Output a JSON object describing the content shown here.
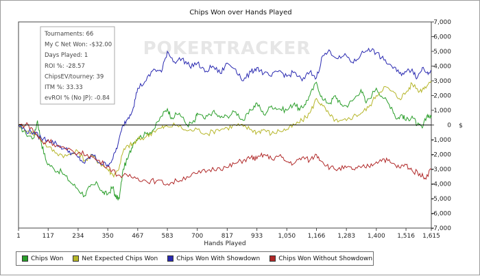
{
  "chart_data": {
    "type": "line",
    "title": "Chips Won over Hands Played",
    "xlabel": "Hands Played",
    "ylabel": "$",
    "x_ticks": [
      "1",
      "117",
      "234",
      "350",
      "467",
      "583",
      "700",
      "817",
      "933",
      "1,050",
      "1,166",
      "1,283",
      "1,400",
      "1,516",
      "1,615"
    ],
    "xlim": [
      1,
      1615
    ],
    "ylim": [
      -7000,
      7000
    ],
    "y_ticks": [
      {
        "v": 7000,
        "label": "7,000"
      },
      {
        "v": 6000,
        "label": "6,000"
      },
      {
        "v": 5000,
        "label": "5,000"
      },
      {
        "v": 4000,
        "label": "4,000"
      },
      {
        "v": 3000,
        "label": "3,000"
      },
      {
        "v": 2000,
        "label": "2,000"
      },
      {
        "v": 1000,
        "label": "1,000"
      },
      {
        "v": 0,
        "label": "0"
      },
      {
        "v": -1000,
        "label": "-1,000"
      },
      {
        "v": -2000,
        "label": "-2,000"
      },
      {
        "v": -3000,
        "label": "-3,000"
      },
      {
        "v": -4000,
        "label": "-4,000"
      },
      {
        "v": -5000,
        "label": "-5,000"
      },
      {
        "v": -6000,
        "label": "-6,000"
      },
      {
        "v": -7000,
        "label": "-7,000"
      }
    ],
    "legend_position": "bottom",
    "grid": false,
    "series": [
      {
        "name": "Chips Won",
        "color": "#2a9e2a",
        "points": [
          [
            1,
            0
          ],
          [
            30,
            -600
          ],
          [
            60,
            -900
          ],
          [
            75,
            300
          ],
          [
            90,
            -1200
          ],
          [
            110,
            -2500
          ],
          [
            140,
            -3000
          ],
          [
            170,
            -3200
          ],
          [
            200,
            -3800
          ],
          [
            230,
            -4300
          ],
          [
            260,
            -4800
          ],
          [
            280,
            -4200
          ],
          [
            310,
            -4000
          ],
          [
            330,
            -4600
          ],
          [
            350,
            -4700
          ],
          [
            370,
            -4200
          ],
          [
            380,
            -4900
          ],
          [
            395,
            -5000
          ],
          [
            410,
            -3000
          ],
          [
            430,
            -2200
          ],
          [
            450,
            -1200
          ],
          [
            467,
            -900
          ],
          [
            500,
            -600
          ],
          [
            530,
            -300
          ],
          [
            560,
            600
          ],
          [
            583,
            1100
          ],
          [
            600,
            500
          ],
          [
            630,
            800
          ],
          [
            660,
            0
          ],
          [
            690,
            200
          ],
          [
            700,
            800
          ],
          [
            730,
            400
          ],
          [
            760,
            900
          ],
          [
            790,
            500
          ],
          [
            817,
            600
          ],
          [
            850,
            900
          ],
          [
            880,
            300
          ],
          [
            910,
            1000
          ],
          [
            933,
            1500
          ],
          [
            960,
            700
          ],
          [
            990,
            1300
          ],
          [
            1020,
            1100
          ],
          [
            1050,
            1000
          ],
          [
            1080,
            1500
          ],
          [
            1100,
            1000
          ],
          [
            1120,
            1400
          ],
          [
            1140,
            2000
          ],
          [
            1166,
            2900
          ],
          [
            1190,
            1700
          ],
          [
            1220,
            1500
          ],
          [
            1240,
            2000
          ],
          [
            1260,
            1400
          ],
          [
            1283,
            1300
          ],
          [
            1310,
            1700
          ],
          [
            1340,
            2400
          ],
          [
            1360,
            1500
          ],
          [
            1400,
            2500
          ],
          [
            1430,
            1800
          ],
          [
            1460,
            1200
          ],
          [
            1480,
            400
          ],
          [
            1500,
            700
          ],
          [
            1516,
            300
          ],
          [
            1540,
            600
          ],
          [
            1560,
            0
          ],
          [
            1580,
            -200
          ],
          [
            1600,
            700
          ],
          [
            1615,
            500
          ]
        ]
      },
      {
        "name": "Net Expected Chips Won",
        "color": "#b5b528",
        "points": [
          [
            1,
            0
          ],
          [
            40,
            -400
          ],
          [
            80,
            -800
          ],
          [
            117,
            -1500
          ],
          [
            150,
            -1900
          ],
          [
            190,
            -2100
          ],
          [
            234,
            -1800
          ],
          [
            260,
            -2400
          ],
          [
            290,
            -2100
          ],
          [
            320,
            -2600
          ],
          [
            350,
            -3000
          ],
          [
            370,
            -3400
          ],
          [
            390,
            -3100
          ],
          [
            410,
            -1800
          ],
          [
            430,
            -1400
          ],
          [
            450,
            -1300
          ],
          [
            467,
            -1000
          ],
          [
            500,
            -800
          ],
          [
            530,
            -400
          ],
          [
            560,
            -200
          ],
          [
            583,
            -100
          ],
          [
            620,
            0
          ],
          [
            660,
            -400
          ],
          [
            700,
            -300
          ],
          [
            740,
            -600
          ],
          [
            780,
            -300
          ],
          [
            817,
            -200
          ],
          [
            850,
            0
          ],
          [
            880,
            -100
          ],
          [
            910,
            -300
          ],
          [
            933,
            -500
          ],
          [
            960,
            -300
          ],
          [
            990,
            -600
          ],
          [
            1020,
            -400
          ],
          [
            1050,
            -300
          ],
          [
            1080,
            0
          ],
          [
            1110,
            300
          ],
          [
            1140,
            800
          ],
          [
            1166,
            1800
          ],
          [
            1190,
            1300
          ],
          [
            1220,
            600
          ],
          [
            1250,
            200
          ],
          [
            1283,
            300
          ],
          [
            1310,
            600
          ],
          [
            1340,
            800
          ],
          [
            1370,
            1200
          ],
          [
            1400,
            2000
          ],
          [
            1430,
            2600
          ],
          [
            1460,
            2300
          ],
          [
            1490,
            1800
          ],
          [
            1516,
            2200
          ],
          [
            1540,
            2800
          ],
          [
            1570,
            2300
          ],
          [
            1590,
            2600
          ],
          [
            1615,
            3000
          ]
        ]
      },
      {
        "name": "Chips Won With Showdown",
        "color": "#2828b0",
        "points": [
          [
            1,
            0
          ],
          [
            30,
            -400
          ],
          [
            60,
            -500
          ],
          [
            90,
            -900
          ],
          [
            117,
            -1000
          ],
          [
            150,
            -1300
          ],
          [
            180,
            -1600
          ],
          [
            210,
            -1900
          ],
          [
            234,
            -2200
          ],
          [
            260,
            -2600
          ],
          [
            290,
            -2000
          ],
          [
            320,
            -2600
          ],
          [
            350,
            -2700
          ],
          [
            370,
            -2300
          ],
          [
            390,
            -1300
          ],
          [
            410,
            0
          ],
          [
            430,
            500
          ],
          [
            450,
            1200
          ],
          [
            467,
            2500
          ],
          [
            500,
            3000
          ],
          [
            530,
            3800
          ],
          [
            560,
            3600
          ],
          [
            583,
            5000
          ],
          [
            610,
            4300
          ],
          [
            640,
            4500
          ],
          [
            670,
            4000
          ],
          [
            700,
            4200
          ],
          [
            730,
            3600
          ],
          [
            760,
            4000
          ],
          [
            790,
            3500
          ],
          [
            817,
            4200
          ],
          [
            850,
            3800
          ],
          [
            880,
            3000
          ],
          [
            910,
            3600
          ],
          [
            933,
            3900
          ],
          [
            960,
            3500
          ],
          [
            990,
            3300
          ],
          [
            1020,
            3700
          ],
          [
            1050,
            3300
          ],
          [
            1080,
            3600
          ],
          [
            1110,
            3000
          ],
          [
            1140,
            3600
          ],
          [
            1166,
            3200
          ],
          [
            1190,
            4700
          ],
          [
            1220,
            5000
          ],
          [
            1250,
            4500
          ],
          [
            1283,
            4700
          ],
          [
            1310,
            4200
          ],
          [
            1340,
            4800
          ],
          [
            1370,
            5200
          ],
          [
            1400,
            4900
          ],
          [
            1430,
            4400
          ],
          [
            1460,
            4000
          ],
          [
            1490,
            3500
          ],
          [
            1516,
            3600
          ],
          [
            1540,
            3800
          ],
          [
            1560,
            3200
          ],
          [
            1580,
            3900
          ],
          [
            1600,
            3600
          ],
          [
            1615,
            3700
          ]
        ]
      },
      {
        "name": "Chips Won Without Showdown",
        "color": "#b02828",
        "points": [
          [
            1,
            0
          ],
          [
            40,
            0
          ],
          [
            70,
            -600
          ],
          [
            100,
            -1300
          ],
          [
            117,
            -1000
          ],
          [
            150,
            -1400
          ],
          [
            190,
            -1700
          ],
          [
            234,
            -1900
          ],
          [
            270,
            -2000
          ],
          [
            310,
            -2400
          ],
          [
            350,
            -2800
          ],
          [
            390,
            -3400
          ],
          [
            430,
            -3500
          ],
          [
            467,
            -3600
          ],
          [
            500,
            -3800
          ],
          [
            540,
            -3800
          ],
          [
            583,
            -4000
          ],
          [
            620,
            -3800
          ],
          [
            660,
            -3500
          ],
          [
            700,
            -3300
          ],
          [
            740,
            -3100
          ],
          [
            780,
            -2900
          ],
          [
            817,
            -2900
          ],
          [
            850,
            -2600
          ],
          [
            880,
            -2400
          ],
          [
            910,
            -2200
          ],
          [
            933,
            -2300
          ],
          [
            960,
            -2000
          ],
          [
            990,
            -2300
          ],
          [
            1020,
            -2100
          ],
          [
            1050,
            -2500
          ],
          [
            1080,
            -2600
          ],
          [
            1110,
            -2200
          ],
          [
            1140,
            -2400
          ],
          [
            1166,
            -2000
          ],
          [
            1190,
            -2500
          ],
          [
            1220,
            -2900
          ],
          [
            1250,
            -3000
          ],
          [
            1283,
            -2900
          ],
          [
            1310,
            -3000
          ],
          [
            1340,
            -2900
          ],
          [
            1370,
            -2800
          ],
          [
            1400,
            -2500
          ],
          [
            1430,
            -2300
          ],
          [
            1460,
            -2600
          ],
          [
            1490,
            -2900
          ],
          [
            1516,
            -2700
          ],
          [
            1540,
            -3100
          ],
          [
            1570,
            -3300
          ],
          [
            1590,
            -3600
          ],
          [
            1615,
            -3000
          ]
        ]
      }
    ],
    "stats": [
      "Tournaments: 66",
      "My C Net Won: -$32.00",
      "Days Played: 1",
      "ROI %: -28.57",
      "ChipsEV/tourney: 39",
      "ITM %: 33.33",
      "evROI % (No JP): -0.84"
    ],
    "watermark": "POKERTRACKER"
  }
}
